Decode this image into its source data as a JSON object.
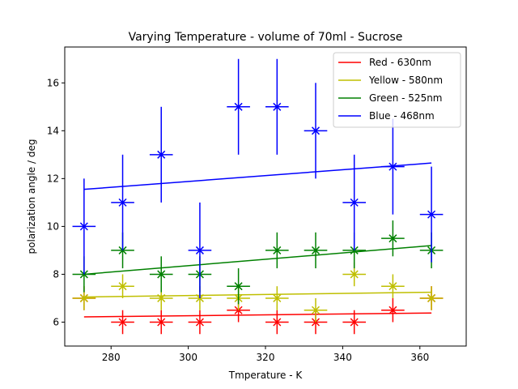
{
  "chart_data": {
    "type": "scatter",
    "title": "Varying Temperature - volume of 70ml - Sucrose",
    "xlabel": "Tmperature - K",
    "ylabel": "polarization angle / deg",
    "xlim": [
      268,
      372
    ],
    "ylim": [
      5,
      17.5
    ],
    "xticks": [
      280,
      300,
      320,
      340,
      360
    ],
    "yticks": [
      6,
      8,
      10,
      12,
      14,
      16
    ],
    "x_error": 3,
    "grid": false,
    "legend_position": "top-right",
    "series": [
      {
        "name": "Red - 630nm",
        "color": "#ff0000",
        "x": [
          273,
          283,
          293,
          303,
          313,
          323,
          333,
          343,
          353,
          363
        ],
        "y": [
          7,
          6,
          6,
          6,
          6.5,
          6,
          6,
          6,
          6.5,
          7
        ],
        "yerr": [
          0.5,
          0.5,
          0.5,
          0.5,
          0.5,
          0.5,
          0.5,
          0.5,
          0.5,
          0.5
        ],
        "fit": [
          [
            273,
            6.22
          ],
          [
            363,
            6.38
          ]
        ]
      },
      {
        "name": "Yellow - 580nm",
        "color": "#bfbf00",
        "x": [
          273,
          283,
          293,
          303,
          313,
          323,
          333,
          343,
          353,
          363
        ],
        "y": [
          7,
          7.5,
          7,
          7,
          7,
          7,
          6.5,
          8,
          7.5,
          7
        ],
        "yerr": [
          0.5,
          0.5,
          0.5,
          0.5,
          0.5,
          0.5,
          0.5,
          0.5,
          0.5,
          0.5
        ],
        "fit": [
          [
            273,
            7.05
          ],
          [
            363,
            7.25
          ]
        ]
      },
      {
        "name": "Green - 525nm",
        "color": "#008000",
        "x": [
          273,
          283,
          293,
          303,
          313,
          323,
          333,
          343,
          353,
          363
        ],
        "y": [
          8,
          9,
          8,
          8,
          7.5,
          9,
          9,
          9,
          9.5,
          9
        ],
        "yerr": [
          0.75,
          0.75,
          0.75,
          0.75,
          0.75,
          0.75,
          0.75,
          0.75,
          0.75,
          0.75
        ],
        "fit": [
          [
            273,
            8.0
          ],
          [
            363,
            9.2
          ]
        ]
      },
      {
        "name": "Blue - 468nm",
        "color": "#0000ff",
        "x": [
          273,
          283,
          293,
          303,
          313,
          323,
          333,
          343,
          353,
          363
        ],
        "y": [
          10,
          11,
          13,
          9,
          15,
          15,
          14,
          11,
          12.5,
          10.5
        ],
        "yerr": [
          2,
          2,
          2,
          2,
          2,
          2,
          2,
          2,
          2,
          2
        ],
        "fit": [
          [
            273,
            11.55
          ],
          [
            363,
            12.65
          ]
        ]
      }
    ]
  }
}
